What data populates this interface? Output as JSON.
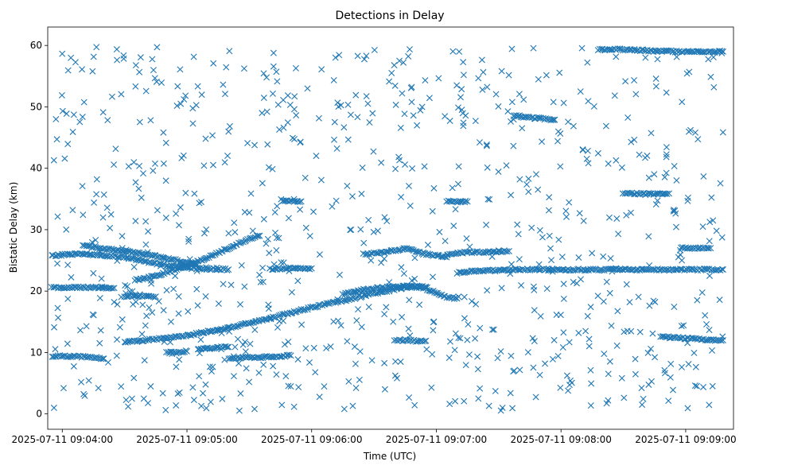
{
  "chart_data": {
    "type": "scatter",
    "title": "Detections in Delay",
    "xlabel": "Time (UTC)",
    "ylabel": "Bistatic Delay (km)",
    "marker": "x",
    "color": "#1f77b4",
    "xlim_seconds": [
      -7,
      323
    ],
    "ylim": [
      -2.5,
      63
    ],
    "xticks": [
      {
        "value": 0,
        "label": "2025-07-11 09:04:00"
      },
      {
        "value": 60,
        "label": "2025-07-11 09:05:00"
      },
      {
        "value": 120,
        "label": "2025-07-11 09:06:00"
      },
      {
        "value": 180,
        "label": "2025-07-11 09:07:00"
      },
      {
        "value": 240,
        "label": "2025-07-11 09:08:00"
      },
      {
        "value": 300,
        "label": "2025-07-11 09:09:00"
      }
    ],
    "yticks": [
      0,
      10,
      20,
      30,
      40,
      50,
      60
    ],
    "x_seconds_note": "x values are seconds after 2025-07-11 09:04:00",
    "tracks": [
      {
        "name": "track-a",
        "points": [
          [
            -5,
            25.8
          ],
          [
            0,
            25.9
          ],
          [
            5,
            26.0
          ],
          [
            10,
            26.0
          ],
          [
            15,
            25.9
          ],
          [
            20,
            25.8
          ],
          [
            25,
            25.7
          ],
          [
            30,
            25.5
          ],
          [
            35,
            25.2
          ],
          [
            40,
            24.8
          ],
          [
            45,
            24.5
          ],
          [
            50,
            24.2
          ],
          [
            55,
            24.0
          ],
          [
            60,
            23.8
          ],
          [
            65,
            23.7
          ],
          [
            70,
            23.6
          ],
          [
            75,
            23.6
          ],
          [
            80,
            23.5
          ]
        ]
      },
      {
        "name": "track-b",
        "points": [
          [
            -5,
            20.6
          ],
          [
            0,
            20.6
          ],
          [
            5,
            20.6
          ],
          [
            20,
            20.6
          ],
          [
            25,
            20.5
          ]
        ]
      },
      {
        "name": "track-c",
        "points": [
          [
            -5,
            9.4
          ],
          [
            0,
            9.4
          ],
          [
            5,
            9.4
          ],
          [
            10,
            9.3
          ],
          [
            15,
            9.2
          ],
          [
            20,
            9.0
          ]
        ]
      },
      {
        "name": "track-d",
        "points": [
          [
            10,
            27.5
          ],
          [
            15,
            27.2
          ],
          [
            20,
            26.9
          ],
          [
            25,
            26.7
          ],
          [
            30,
            26.5
          ],
          [
            35,
            26.3
          ],
          [
            40,
            26.0
          ],
          [
            45,
            25.7
          ],
          [
            50,
            25.3
          ],
          [
            55,
            25.0
          ],
          [
            60,
            24.6
          ],
          [
            65,
            24.3
          ]
        ]
      },
      {
        "name": "track-e",
        "points": [
          [
            35,
            21.8
          ],
          [
            40,
            22.1
          ],
          [
            45,
            22.5
          ],
          [
            50,
            23.0
          ],
          [
            55,
            23.6
          ],
          [
            60,
            24.2
          ],
          [
            65,
            24.8
          ],
          [
            70,
            25.5
          ],
          [
            75,
            26.2
          ],
          [
            80,
            27.0
          ],
          [
            85,
            27.8
          ],
          [
            90,
            28.5
          ],
          [
            95,
            29.0
          ]
        ]
      },
      {
        "name": "track-f",
        "points": [
          [
            30,
            11.7
          ],
          [
            40,
            12.0
          ],
          [
            50,
            12.4
          ],
          [
            60,
            12.8
          ],
          [
            70,
            13.4
          ],
          [
            80,
            14.0
          ],
          [
            90,
            14.8
          ],
          [
            100,
            15.6
          ],
          [
            110,
            16.5
          ],
          [
            120,
            17.3
          ],
          [
            130,
            18.1
          ],
          [
            140,
            18.8
          ],
          [
            150,
            19.6
          ],
          [
            160,
            20.3
          ],
          [
            165,
            20.6
          ],
          [
            170,
            20.7
          ],
          [
            175,
            20.4
          ],
          [
            180,
            19.7
          ],
          [
            185,
            19.0
          ],
          [
            190,
            18.8
          ]
        ]
      },
      {
        "name": "track-g",
        "points": [
          [
            135,
            19.5
          ],
          [
            145,
            20.2
          ],
          [
            155,
            20.6
          ],
          [
            165,
            20.8
          ],
          [
            175,
            20.7
          ]
        ]
      },
      {
        "name": "track-h",
        "points": [
          [
            30,
            19.2
          ],
          [
            40,
            19.2
          ],
          [
            45,
            19.1
          ]
        ]
      },
      {
        "name": "track-i",
        "points": [
          [
            50,
            10.0
          ],
          [
            55,
            10.0
          ],
          [
            60,
            10.2
          ]
        ]
      },
      {
        "name": "track-j",
        "points": [
          [
            65,
            10.6
          ],
          [
            75,
            10.8
          ],
          [
            80,
            10.9
          ]
        ]
      },
      {
        "name": "track-k",
        "points": [
          [
            80,
            9.0
          ],
          [
            90,
            9.2
          ],
          [
            100,
            9.3
          ],
          [
            110,
            9.5
          ]
        ]
      },
      {
        "name": "track-l",
        "points": [
          [
            105,
            34.8
          ],
          [
            110,
            34.7
          ],
          [
            115,
            34.6
          ]
        ]
      },
      {
        "name": "track-m",
        "points": [
          [
            100,
            23.6
          ],
          [
            110,
            23.7
          ],
          [
            120,
            23.7
          ]
        ]
      },
      {
        "name": "track-n",
        "points": [
          [
            145,
            26.0
          ],
          [
            155,
            26.3
          ],
          [
            160,
            26.6
          ],
          [
            165,
            27.0
          ],
          [
            170,
            26.5
          ],
          [
            175,
            26.0
          ],
          [
            180,
            25.8
          ],
          [
            185,
            25.5
          ]
        ]
      },
      {
        "name": "track-o",
        "points": [
          [
            160,
            12.0
          ],
          [
            165,
            12.0
          ],
          [
            170,
            11.9
          ],
          [
            175,
            11.9
          ]
        ]
      },
      {
        "name": "track-p",
        "points": [
          [
            185,
            34.6
          ],
          [
            190,
            34.6
          ],
          [
            195,
            34.6
          ]
        ]
      },
      {
        "name": "track-q",
        "points": [
          [
            185,
            26.0
          ],
          [
            195,
            26.3
          ],
          [
            205,
            26.4
          ],
          [
            215,
            26.5
          ]
        ]
      },
      {
        "name": "track-r",
        "points": [
          [
            190,
            23.0
          ],
          [
            200,
            23.3
          ],
          [
            210,
            23.4
          ],
          [
            220,
            23.5
          ],
          [
            230,
            23.5
          ],
          [
            240,
            23.5
          ],
          [
            250,
            23.5
          ],
          [
            260,
            23.5
          ],
          [
            270,
            23.5
          ],
          [
            280,
            23.5
          ],
          [
            290,
            23.5
          ],
          [
            300,
            23.5
          ],
          [
            310,
            23.5
          ],
          [
            318,
            23.5
          ]
        ]
      },
      {
        "name": "track-s",
        "points": [
          [
            217,
            48.6
          ],
          [
            222,
            48.4
          ],
          [
            227,
            48.2
          ],
          [
            232,
            48.0
          ],
          [
            237,
            47.9
          ]
        ]
      },
      {
        "name": "track-t",
        "points": [
          [
            258,
            59.3
          ],
          [
            265,
            59.4
          ],
          [
            275,
            59.3
          ],
          [
            285,
            59.1
          ],
          [
            295,
            59.0
          ],
          [
            305,
            59.0
          ],
          [
            318,
            59.0
          ]
        ]
      },
      {
        "name": "track-u",
        "points": [
          [
            288,
            12.6
          ],
          [
            295,
            12.4
          ],
          [
            305,
            12.2
          ],
          [
            315,
            12.0
          ],
          [
            318,
            12.0
          ]
        ]
      },
      {
        "name": "track-v",
        "points": [
          [
            298,
            27.0
          ],
          [
            305,
            27.0
          ],
          [
            312,
            27.0
          ]
        ]
      },
      {
        "name": "track-w",
        "points": [
          [
            270,
            36.0
          ],
          [
            280,
            35.8
          ],
          [
            292,
            35.9
          ]
        ]
      }
    ],
    "random_points_count": 820,
    "random_points_seed": 20250711
  }
}
